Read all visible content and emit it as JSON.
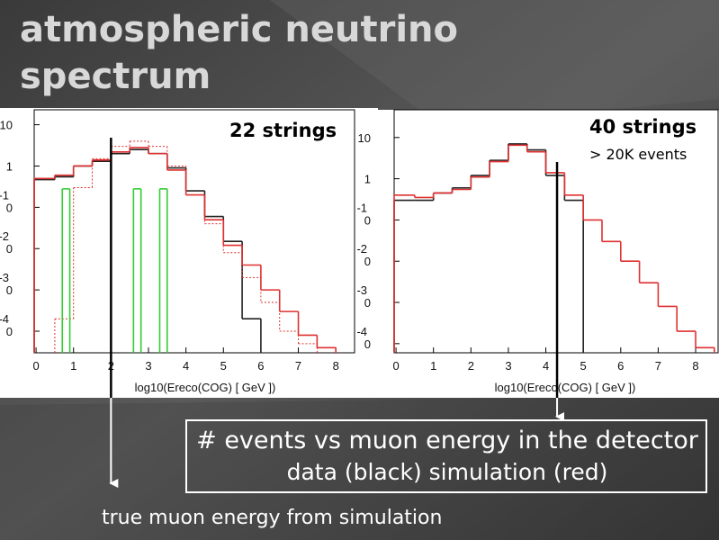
{
  "title_lines": [
    "atmospheric neutrino",
    "spectrum"
  ],
  "chart_data": [
    {
      "type": "histogram",
      "label": "22 strings",
      "xlabel": "log10(Ereco(COG) [ GeV ])",
      "xlim": [
        -0.05,
        8.5
      ],
      "xticks": [
        0,
        1,
        2,
        3,
        4,
        5,
        6,
        7,
        8
      ],
      "ylim": [
        3e-05,
        23
      ],
      "log_y": true,
      "yticks": [
        10,
        1,
        {
          "value": 0.1,
          "label": "0",
          "exponent": "-1"
        },
        {
          "value": 0.01,
          "label": "0",
          "exponent": "-2"
        },
        {
          "value": 0.001,
          "label": "0",
          "exponent": "-3"
        },
        {
          "value": 0.0001,
          "label": "0",
          "exponent": "-4"
        }
      ],
      "marker_x": 2,
      "series": [
        {
          "color": "#222222",
          "style": "solid",
          "bins": [
            -0.05,
            0.5,
            1,
            1.5,
            2,
            2.5,
            3,
            3.5,
            4,
            4.5,
            5,
            5.5,
            6,
            6.5,
            7,
            7.5,
            8,
            8.5
          ],
          "values": [
            0.47,
            0.55,
            1.0,
            1.3,
            2.0,
            2.5,
            2.0,
            0.9,
            0.25,
            0.06,
            0.015,
            0.0002,
            null,
            null,
            null,
            null,
            null
          ]
        },
        {
          "color": "#e03030",
          "style": "solid",
          "bins": [
            -0.05,
            0.5,
            1,
            1.5,
            2,
            2.5,
            3,
            3.5,
            4,
            4.5,
            5,
            5.5,
            6,
            6.5,
            7,
            7.5,
            8,
            8.5
          ],
          "values": [
            0.5,
            0.6,
            1.0,
            1.4,
            2.2,
            2.8,
            2.0,
            0.8,
            0.2,
            0.05,
            0.012,
            0.004,
            0.001,
            0.0003,
            8e-05,
            4e-05,
            null
          ]
        },
        {
          "color": "#e03030",
          "style": "dotted",
          "bins": [
            -0.05,
            0.5,
            1,
            1.5,
            2,
            2.5,
            3,
            3.5,
            4,
            4.5,
            5,
            5.5,
            6,
            6.5,
            7,
            7.5,
            8,
            8.5
          ],
          "values": [
            null,
            0.0002,
            0.3,
            1.5,
            3,
            4,
            3,
            1,
            0.2,
            0.04,
            0.008,
            0.002,
            0.0005,
            0.0001,
            5e-05,
            null,
            null
          ]
        },
        {
          "color": "#33cc33",
          "style": "solid",
          "bins": [
            0.7,
            0.9,
            2.6,
            2.8,
            3.3,
            3.5
          ],
          "values": [
            0.28,
            null,
            0.28,
            null,
            0.28
          ]
        }
      ]
    },
    {
      "type": "histogram",
      "label": "40 strings",
      "sublabel": "> 20K events",
      "xlabel": "log10(Ereco(COG) [ GeV ])",
      "xlim": [
        -0.05,
        8.6
      ],
      "xticks": [
        0,
        1,
        2,
        3,
        4,
        5,
        6,
        7,
        8
      ],
      "ylim": [
        6e-05,
        47
      ],
      "log_y": true,
      "yticks": [
        10,
        1,
        {
          "value": 0.1,
          "label": "0",
          "exponent": "-1"
        },
        {
          "value": 0.01,
          "label": "0",
          "exponent": "-2"
        },
        {
          "value": 0.001,
          "label": "0",
          "exponent": "-3"
        },
        {
          "value": 0.0001,
          "label": "0",
          "exponent": "-4"
        }
      ],
      "marker_x": 4.3,
      "series": [
        {
          "color": "#222222",
          "style": "solid",
          "bins": [
            -0.05,
            0.5,
            1,
            1.5,
            2,
            2.5,
            3,
            3.5,
            4,
            4.5,
            5,
            5.5,
            6,
            6.5,
            7,
            7.5,
            8,
            8.5,
            9
          ],
          "values": [
            0.3,
            0.3,
            0.45,
            0.6,
            1.2,
            2.8,
            7,
            5,
            1.2,
            0.3,
            null,
            null,
            null,
            null,
            null,
            null,
            null,
            null
          ]
        },
        {
          "color": "#e03030",
          "style": "solid",
          "bins": [
            -0.05,
            0.5,
            1,
            1.5,
            2,
            2.5,
            3,
            3.5,
            4,
            4.5,
            5,
            5.5,
            6,
            6.5,
            7,
            7.5,
            8,
            8.5,
            9
          ],
          "values": [
            0.4,
            0.35,
            0.45,
            0.55,
            1.1,
            2.6,
            6.5,
            4.5,
            1.4,
            0.4,
            0.1,
            0.03,
            0.01,
            0.003,
            0.0008,
            0.0002,
            8e-05,
            null
          ]
        }
      ]
    }
  ],
  "box_lines": [
    "# events vs muon energy in the detector",
    "data (black) simulation (red)"
  ],
  "note": "true muon energy from simulation"
}
